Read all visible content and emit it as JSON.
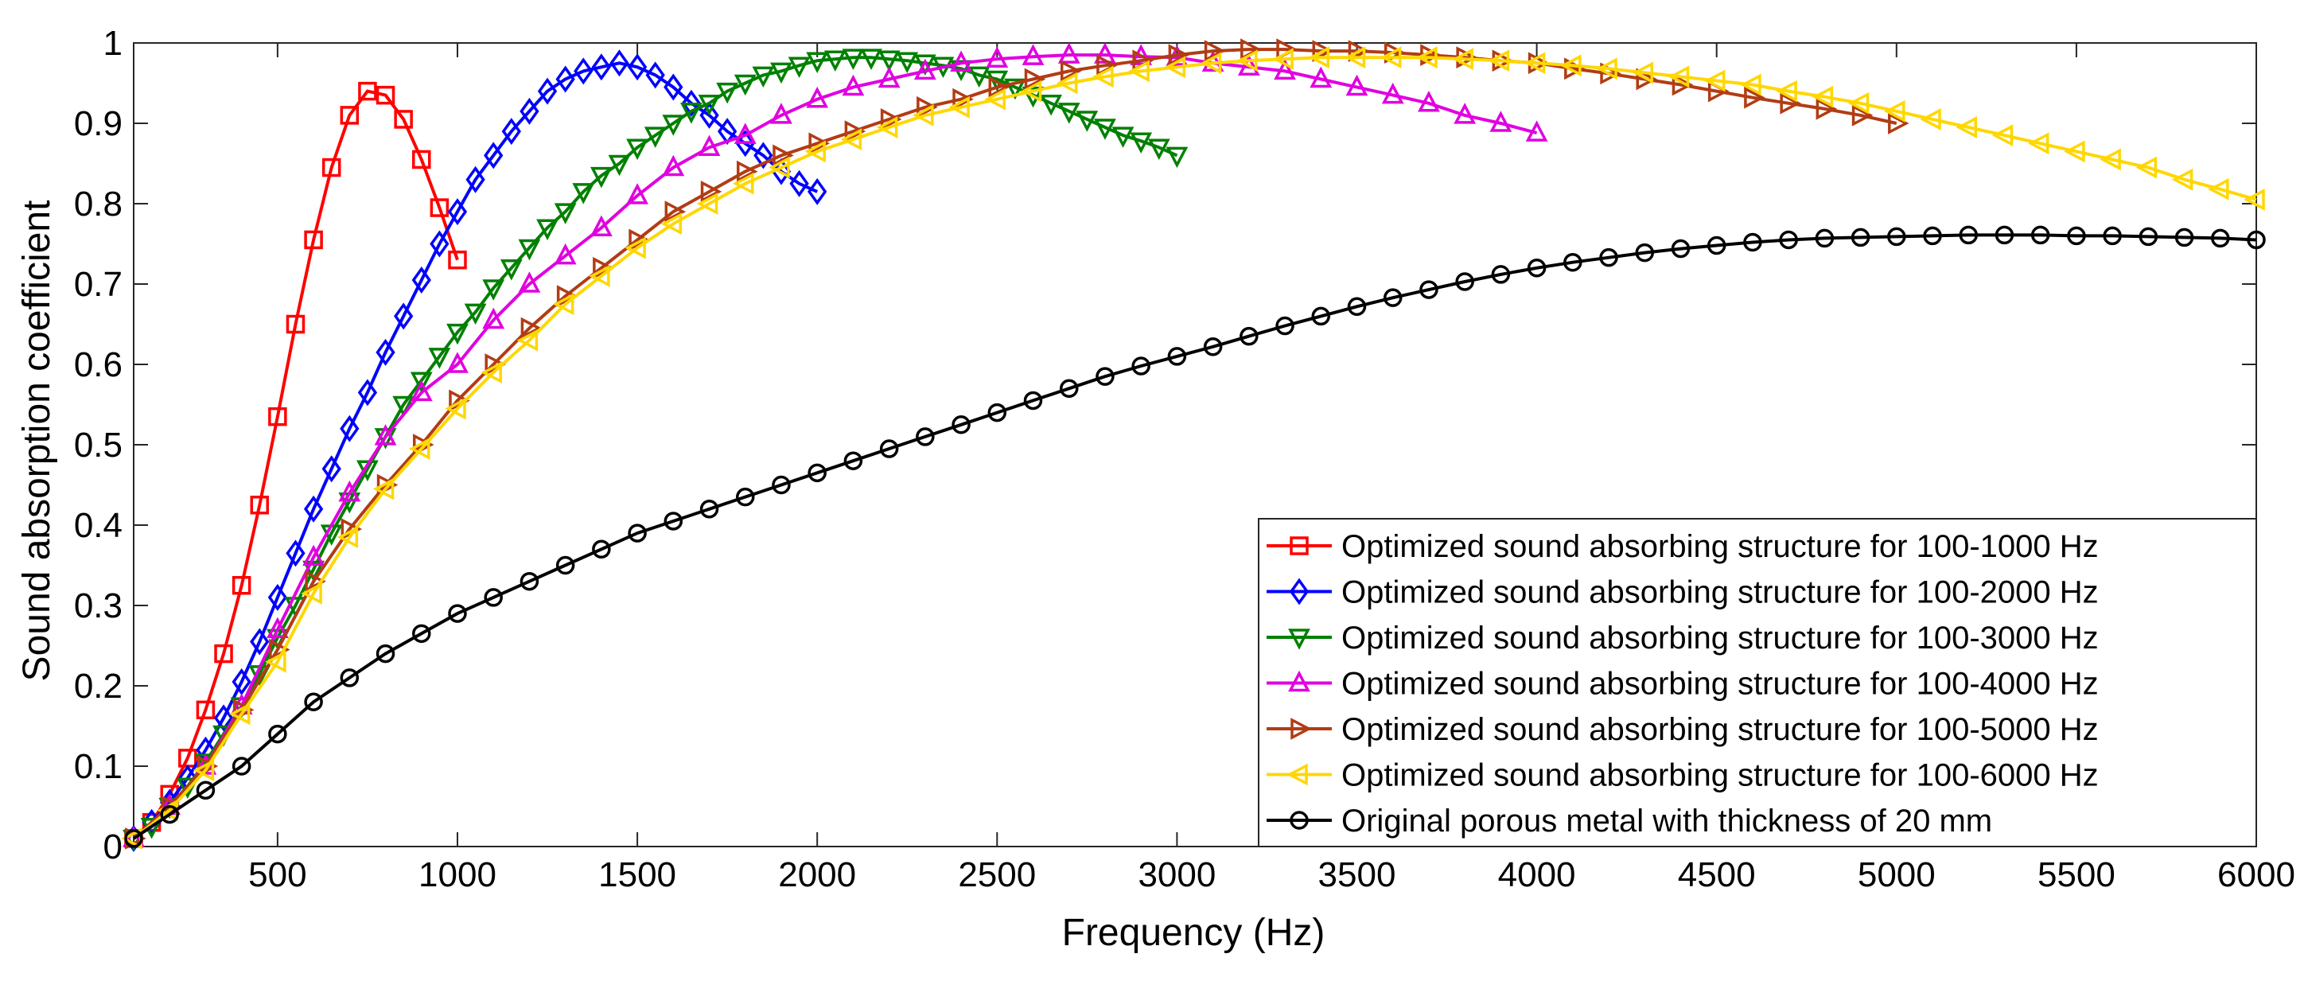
{
  "chart_data": {
    "type": "line",
    "title": "",
    "xlabel": "Frequency (Hz)",
    "ylabel": "Sound absorption coefficient",
    "xlim": [
      100,
      6000
    ],
    "ylim": [
      0,
      1
    ],
    "xticks": [
      500,
      1000,
      1500,
      2000,
      2500,
      3000,
      3500,
      4000,
      4500,
      5000,
      5500,
      6000
    ],
    "yticks": [
      0,
      0.1,
      0.2,
      0.3,
      0.4,
      0.5,
      0.6,
      0.7,
      0.8,
      0.9,
      1
    ],
    "legend_position": "bottom-right",
    "grid": false,
    "series": [
      {
        "name": "Optimized sound absorbing structure for 100-1000 Hz",
        "color": "#ff0000",
        "marker": "square",
        "x": [
          100,
          150,
          200,
          250,
          300,
          350,
          400,
          450,
          500,
          550,
          600,
          650,
          700,
          750,
          800,
          850,
          900,
          950,
          1000
        ],
        "y": [
          0.01,
          0.03,
          0.065,
          0.11,
          0.17,
          0.24,
          0.325,
          0.425,
          0.535,
          0.65,
          0.755,
          0.845,
          0.91,
          0.94,
          0.935,
          0.905,
          0.855,
          0.795,
          0.73
        ]
      },
      {
        "name": "Optimized sound absorbing structure for 100-2000 Hz",
        "color": "#0000ff",
        "marker": "diamond",
        "x": [
          100,
          150,
          200,
          250,
          300,
          350,
          400,
          450,
          500,
          550,
          600,
          650,
          700,
          750,
          800,
          850,
          900,
          950,
          1000,
          1050,
          1100,
          1150,
          1200,
          1250,
          1300,
          1350,
          1400,
          1450,
          1500,
          1550,
          1600,
          1650,
          1700,
          1750,
          1800,
          1850,
          1900,
          1950,
          2000
        ],
        "y": [
          0.01,
          0.03,
          0.055,
          0.085,
          0.12,
          0.16,
          0.205,
          0.255,
          0.31,
          0.365,
          0.42,
          0.47,
          0.52,
          0.565,
          0.615,
          0.66,
          0.705,
          0.75,
          0.79,
          0.83,
          0.86,
          0.89,
          0.915,
          0.94,
          0.955,
          0.965,
          0.97,
          0.975,
          0.97,
          0.96,
          0.945,
          0.925,
          0.91,
          0.89,
          0.875,
          0.86,
          0.84,
          0.825,
          0.815
        ]
      },
      {
        "name": "Optimized sound absorbing structure for 100-3000 Hz",
        "color": "#008000",
        "marker": "triangle-down",
        "x": [
          100,
          150,
          200,
          250,
          300,
          350,
          400,
          450,
          500,
          550,
          600,
          650,
          700,
          750,
          800,
          850,
          900,
          950,
          1000,
          1050,
          1100,
          1150,
          1200,
          1250,
          1300,
          1350,
          1400,
          1450,
          1500,
          1550,
          1600,
          1650,
          1700,
          1750,
          1800,
          1850,
          1900,
          1950,
          2000,
          2050,
          2100,
          2150,
          2200,
          2250,
          2300,
          2350,
          2400,
          2450,
          2500,
          2550,
          2600,
          2650,
          2700,
          2750,
          2800,
          2850,
          2900,
          2950,
          3000
        ],
        "y": [
          0.01,
          0.025,
          0.05,
          0.075,
          0.105,
          0.14,
          0.175,
          0.215,
          0.26,
          0.3,
          0.345,
          0.39,
          0.43,
          0.47,
          0.51,
          0.55,
          0.58,
          0.61,
          0.64,
          0.665,
          0.695,
          0.72,
          0.745,
          0.77,
          0.79,
          0.815,
          0.835,
          0.85,
          0.87,
          0.885,
          0.9,
          0.915,
          0.925,
          0.94,
          0.95,
          0.96,
          0.965,
          0.972,
          0.978,
          0.98,
          0.982,
          0.982,
          0.98,
          0.978,
          0.975,
          0.972,
          0.968,
          0.96,
          0.955,
          0.945,
          0.935,
          0.925,
          0.915,
          0.905,
          0.895,
          0.885,
          0.878,
          0.87,
          0.86
        ]
      },
      {
        "name": "Optimized sound absorbing structure for 100-4000 Hz",
        "color": "#e000e0",
        "marker": "triangle-up",
        "x": [
          100,
          200,
          300,
          400,
          500,
          600,
          700,
          800,
          900,
          1000,
          1100,
          1200,
          1300,
          1400,
          1500,
          1600,
          1700,
          1800,
          1900,
          2000,
          2100,
          2200,
          2300,
          2400,
          2500,
          2600,
          2700,
          2800,
          2900,
          3000,
          3100,
          3200,
          3300,
          3400,
          3500,
          3600,
          3700,
          3800,
          3900,
          4000
        ],
        "y": [
          0.01,
          0.05,
          0.1,
          0.175,
          0.27,
          0.36,
          0.44,
          0.51,
          0.565,
          0.6,
          0.655,
          0.7,
          0.735,
          0.77,
          0.81,
          0.845,
          0.87,
          0.885,
          0.91,
          0.93,
          0.945,
          0.955,
          0.965,
          0.975,
          0.98,
          0.983,
          0.985,
          0.985,
          0.983,
          0.982,
          0.975,
          0.97,
          0.965,
          0.955,
          0.945,
          0.935,
          0.925,
          0.91,
          0.9,
          0.888
        ]
      },
      {
        "name": "Optimized sound absorbing structure for 100-5000 Hz",
        "color": "#b23c14",
        "marker": "triangle-right",
        "x": [
          100,
          200,
          300,
          400,
          500,
          600,
          700,
          800,
          900,
          1000,
          1100,
          1200,
          1300,
          1400,
          1500,
          1600,
          1700,
          1800,
          1900,
          2000,
          2100,
          2200,
          2300,
          2400,
          2500,
          2600,
          2700,
          2800,
          2900,
          3000,
          3100,
          3200,
          3300,
          3400,
          3500,
          3600,
          3700,
          3800,
          3900,
          4000,
          4100,
          4200,
          4300,
          4400,
          4500,
          4600,
          4700,
          4800,
          4900,
          5000
        ],
        "y": [
          0.01,
          0.05,
          0.1,
          0.17,
          0.245,
          0.33,
          0.395,
          0.45,
          0.5,
          0.555,
          0.6,
          0.645,
          0.685,
          0.72,
          0.755,
          0.79,
          0.815,
          0.84,
          0.86,
          0.875,
          0.89,
          0.905,
          0.92,
          0.93,
          0.945,
          0.955,
          0.965,
          0.972,
          0.978,
          0.985,
          0.99,
          0.992,
          0.992,
          0.99,
          0.99,
          0.988,
          0.985,
          0.982,
          0.978,
          0.975,
          0.968,
          0.962,
          0.955,
          0.948,
          0.94,
          0.932,
          0.925,
          0.918,
          0.91,
          0.9
        ]
      },
      {
        "name": "Optimized sound absorbing structure for 100-6000 Hz",
        "color": "#ffd700",
        "marker": "triangle-left",
        "x": [
          100,
          200,
          300,
          400,
          500,
          600,
          700,
          800,
          900,
          1000,
          1100,
          1200,
          1300,
          1400,
          1500,
          1600,
          1700,
          1800,
          1900,
          2000,
          2100,
          2200,
          2300,
          2400,
          2500,
          2600,
          2700,
          2800,
          2900,
          3000,
          3100,
          3200,
          3300,
          3400,
          3500,
          3600,
          3700,
          3800,
          3900,
          4000,
          4100,
          4200,
          4300,
          4400,
          4500,
          4600,
          4700,
          4800,
          4900,
          5000,
          5100,
          5200,
          5300,
          5400,
          5500,
          5600,
          5700,
          5800,
          5900,
          6000
        ],
        "y": [
          0.01,
          0.045,
          0.095,
          0.165,
          0.23,
          0.315,
          0.385,
          0.445,
          0.495,
          0.545,
          0.59,
          0.63,
          0.675,
          0.71,
          0.745,
          0.775,
          0.8,
          0.825,
          0.845,
          0.865,
          0.88,
          0.895,
          0.91,
          0.92,
          0.93,
          0.94,
          0.95,
          0.958,
          0.965,
          0.97,
          0.975,
          0.978,
          0.98,
          0.982,
          0.982,
          0.982,
          0.982,
          0.98,
          0.978,
          0.975,
          0.972,
          0.968,
          0.963,
          0.958,
          0.953,
          0.948,
          0.94,
          0.933,
          0.925,
          0.915,
          0.905,
          0.895,
          0.885,
          0.875,
          0.865,
          0.855,
          0.845,
          0.83,
          0.818,
          0.805
        ]
      },
      {
        "name": "Original porous metal with thickness of 20 mm",
        "color": "#000000",
        "marker": "circle",
        "x": [
          100,
          200,
          300,
          400,
          500,
          600,
          700,
          800,
          900,
          1000,
          1100,
          1200,
          1300,
          1400,
          1500,
          1600,
          1700,
          1800,
          1900,
          2000,
          2100,
          2200,
          2300,
          2400,
          2500,
          2600,
          2700,
          2800,
          2900,
          3000,
          3100,
          3200,
          3300,
          3400,
          3500,
          3600,
          3700,
          3800,
          3900,
          4000,
          4100,
          4200,
          4300,
          4400,
          4500,
          4600,
          4700,
          4800,
          4900,
          5000,
          5100,
          5200,
          5300,
          5400,
          5500,
          5600,
          5700,
          5800,
          5900,
          6000
        ],
        "y": [
          0.01,
          0.04,
          0.07,
          0.1,
          0.14,
          0.18,
          0.21,
          0.24,
          0.265,
          0.29,
          0.31,
          0.33,
          0.35,
          0.37,
          0.39,
          0.405,
          0.42,
          0.435,
          0.45,
          0.465,
          0.48,
          0.495,
          0.51,
          0.525,
          0.54,
          0.555,
          0.57,
          0.585,
          0.598,
          0.61,
          0.622,
          0.635,
          0.648,
          0.66,
          0.672,
          0.683,
          0.693,
          0.703,
          0.712,
          0.72,
          0.727,
          0.733,
          0.739,
          0.744,
          0.748,
          0.752,
          0.755,
          0.757,
          0.758,
          0.759,
          0.76,
          0.761,
          0.761,
          0.761,
          0.76,
          0.76,
          0.759,
          0.758,
          0.757,
          0.755
        ]
      }
    ]
  }
}
